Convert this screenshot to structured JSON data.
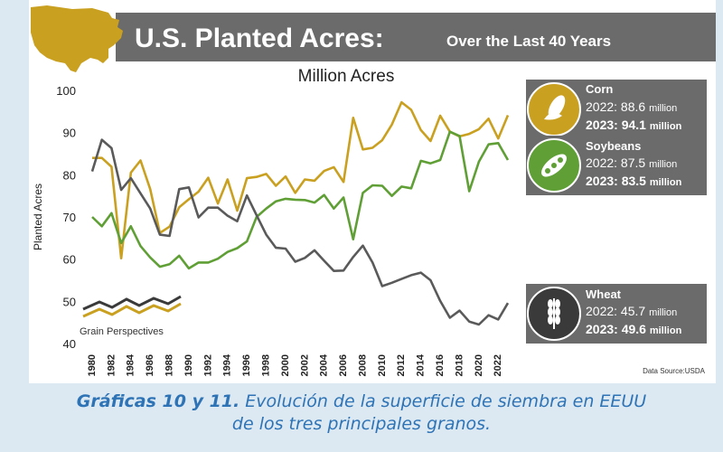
{
  "header": {
    "title_main": "U.S. Planted Acres:",
    "title_sub": "Over the Last 40 Years"
  },
  "colors": {
    "corn": "#c9a020",
    "soybeans": "#5f9f35",
    "wheat": "#5a5a5a",
    "banner": "#6b6b6b",
    "map": "#c9a020",
    "caption": "#2e73b5"
  },
  "chart_data": {
    "type": "line",
    "title": "Million Acres",
    "ylabel": "Planted Acres",
    "xlabel": "",
    "ylim": [
      40,
      100
    ],
    "yticks": [
      40,
      50,
      60,
      70,
      80,
      90,
      100
    ],
    "xlim": [
      1980,
      2023
    ],
    "xticks": [
      1980,
      1982,
      1984,
      1986,
      1988,
      1990,
      1992,
      1994,
      1996,
      1998,
      2000,
      2002,
      2004,
      2006,
      2008,
      2010,
      2012,
      2014,
      2016,
      2018,
      2020,
      2022
    ],
    "grid": false,
    "source": "Data Source:USDA",
    "x": [
      1980,
      1981,
      1982,
      1983,
      1984,
      1985,
      1986,
      1987,
      1988,
      1989,
      1990,
      1991,
      1992,
      1993,
      1994,
      1995,
      1996,
      1997,
      1998,
      1999,
      2000,
      2001,
      2002,
      2003,
      2004,
      2005,
      2006,
      2007,
      2008,
      2009,
      2010,
      2011,
      2012,
      2013,
      2014,
      2015,
      2016,
      2017,
      2018,
      2019,
      2020,
      2021,
      2022,
      2023
    ],
    "series": [
      {
        "name": "Corn",
        "values": [
          84.0,
          84.0,
          81.9,
          60.2,
          80.5,
          83.4,
          76.6,
          66.2,
          67.7,
          72.3,
          74.2,
          76.0,
          79.3,
          73.2,
          78.9,
          71.5,
          79.2,
          79.5,
          80.2,
          77.4,
          79.6,
          75.7,
          78.9,
          78.6,
          80.9,
          81.8,
          78.3,
          93.5,
          86.0,
          86.4,
          88.2,
          91.9,
          97.2,
          95.4,
          90.6,
          88.0,
          94.0,
          90.2,
          89.1,
          89.7,
          90.8,
          93.3,
          88.6,
          94.1
        ],
        "label_2022": "2022: 88.6",
        "label_2023": "2023: 94.1",
        "unit": "million"
      },
      {
        "name": "Soybeans",
        "values": [
          70.0,
          67.8,
          70.9,
          63.8,
          67.8,
          63.1,
          60.4,
          58.2,
          58.8,
          60.8,
          57.8,
          59.2,
          59.2,
          60.1,
          61.7,
          62.6,
          64.2,
          70.0,
          72.0,
          73.7,
          74.3,
          74.1,
          74.0,
          73.4,
          75.2,
          72.0,
          74.6,
          64.7,
          75.7,
          77.5,
          77.4,
          75.0,
          77.2,
          76.8,
          83.3,
          82.7,
          83.5,
          90.2,
          89.2,
          76.1,
          83.1,
          87.2,
          87.5,
          83.5
        ],
        "label_2022": "2022: 87.5",
        "label_2023": "2023: 83.5",
        "unit": "million"
      },
      {
        "name": "Wheat",
        "values": [
          80.8,
          88.3,
          86.3,
          76.4,
          79.2,
          75.6,
          72.0,
          65.8,
          65.5,
          76.6,
          77.0,
          69.9,
          72.2,
          72.2,
          70.3,
          69.0,
          75.1,
          70.4,
          65.8,
          62.7,
          62.5,
          59.4,
          60.3,
          62.1,
          59.6,
          57.2,
          57.3,
          60.5,
          63.2,
          59.2,
          53.6,
          54.4,
          55.3,
          56.2,
          56.8,
          55.0,
          50.1,
          46.1,
          47.8,
          45.2,
          44.5,
          46.7,
          45.7,
          49.6
        ],
        "label_2022": "2022: 45.7",
        "label_2023": "2023: 49.6",
        "unit": "million"
      }
    ]
  },
  "logo": {
    "text": "Grain Perspectives"
  },
  "caption": {
    "bold": "Gráficas 10 y 11.",
    "line1": "Evolución de la superficie de siembra en EEUU",
    "line2": "de los tres principales granos."
  }
}
